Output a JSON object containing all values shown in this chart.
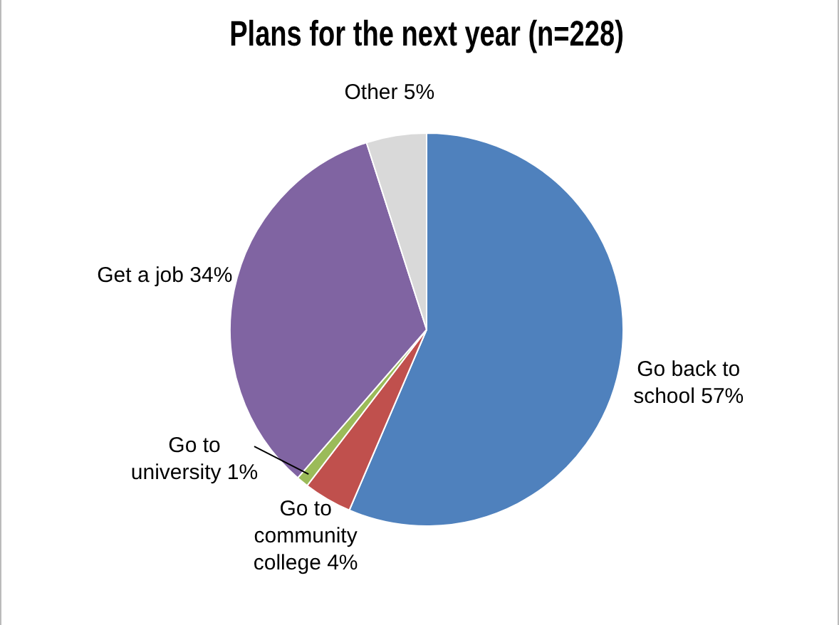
{
  "chart_data": {
    "type": "pie",
    "title": "Plans for the next year (n=228)",
    "categories": [
      "Go back to school",
      "Go to community college",
      "Go to university",
      "Get a job",
      "Other"
    ],
    "values": [
      57,
      4,
      1,
      34,
      5
    ],
    "value_labels": [
      "57%",
      "4%",
      "1%",
      "34%",
      "5%"
    ],
    "colors": [
      "#4f81bd",
      "#c0504d",
      "#9bbb59",
      "#8064a2",
      "#d9d9d9"
    ],
    "legend": false
  }
}
